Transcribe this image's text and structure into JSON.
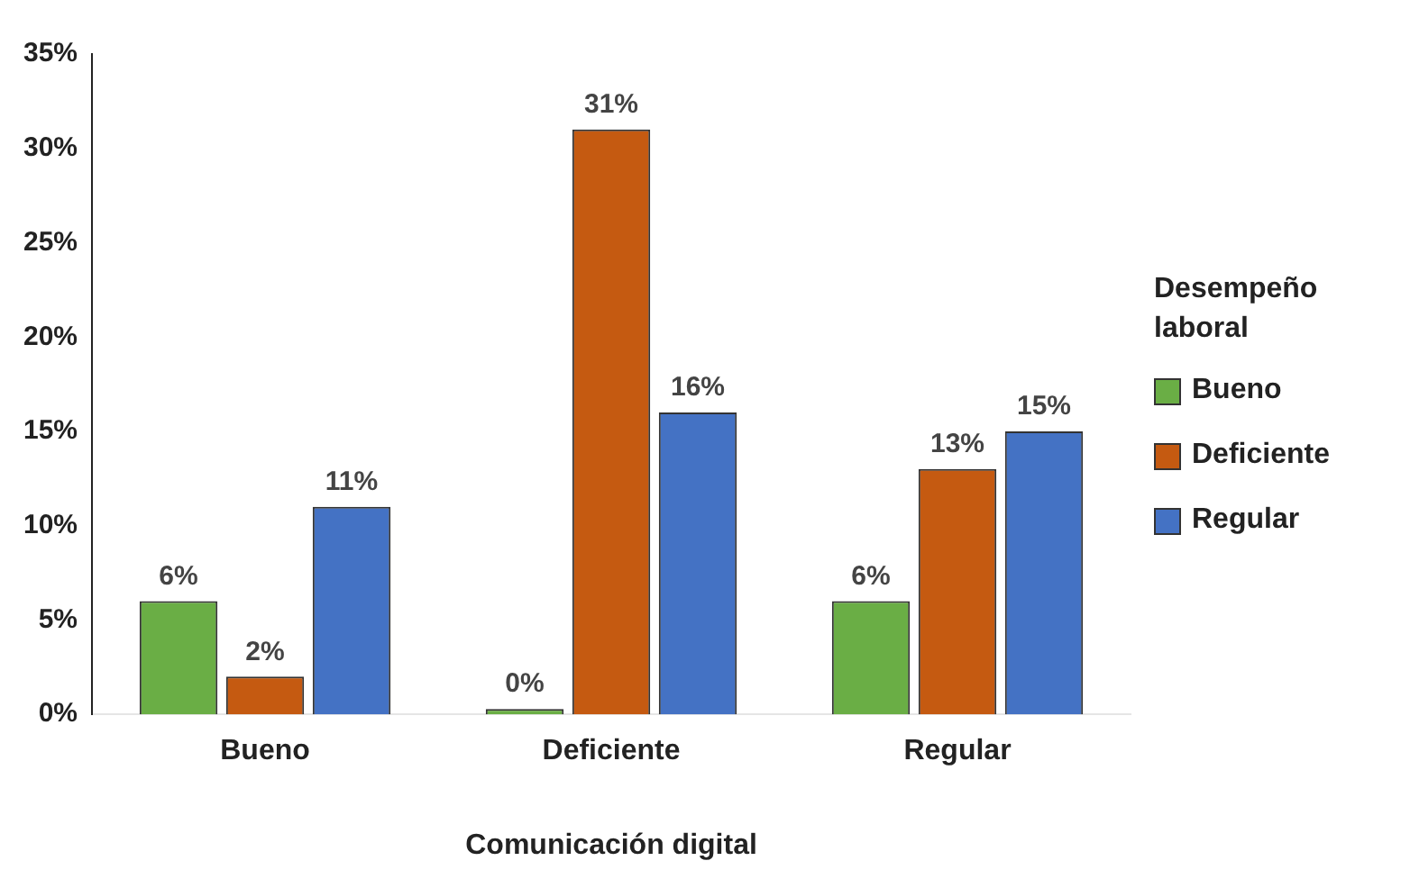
{
  "chart_data": {
    "type": "bar",
    "xlabel": "Comunicación digital",
    "legend_title": "Desempeño laboral",
    "legend": "right",
    "grid": false,
    "categories": [
      "Bueno",
      "Deficiente",
      "Regular"
    ],
    "series": [
      {
        "name": "Bueno",
        "color": "#6aae45",
        "values": [
          6,
          0,
          6
        ],
        "value_labels": [
          "6%",
          "0%",
          "6%"
        ]
      },
      {
        "name": "Deficiente",
        "color": "#c55a11",
        "values": [
          2,
          31,
          13
        ],
        "value_labels": [
          "2%",
          "31%",
          "13%"
        ]
      },
      {
        "name": "Regular",
        "color": "#4472c4",
        "values": [
          11,
          16,
          15
        ],
        "value_labels": [
          "11%",
          "16%",
          "15%"
        ]
      }
    ],
    "ylim": [
      0,
      35
    ],
    "yticks": [
      {
        "value": 0,
        "label": "0%"
      },
      {
        "value": 5,
        "label": "5%"
      },
      {
        "value": 10,
        "label": "10%"
      },
      {
        "value": 15,
        "label": "15%"
      },
      {
        "value": 20,
        "label": "20%"
      },
      {
        "value": 25,
        "label": "25%"
      },
      {
        "value": 30,
        "label": "30%"
      },
      {
        "value": 35,
        "label": "35%"
      }
    ]
  }
}
